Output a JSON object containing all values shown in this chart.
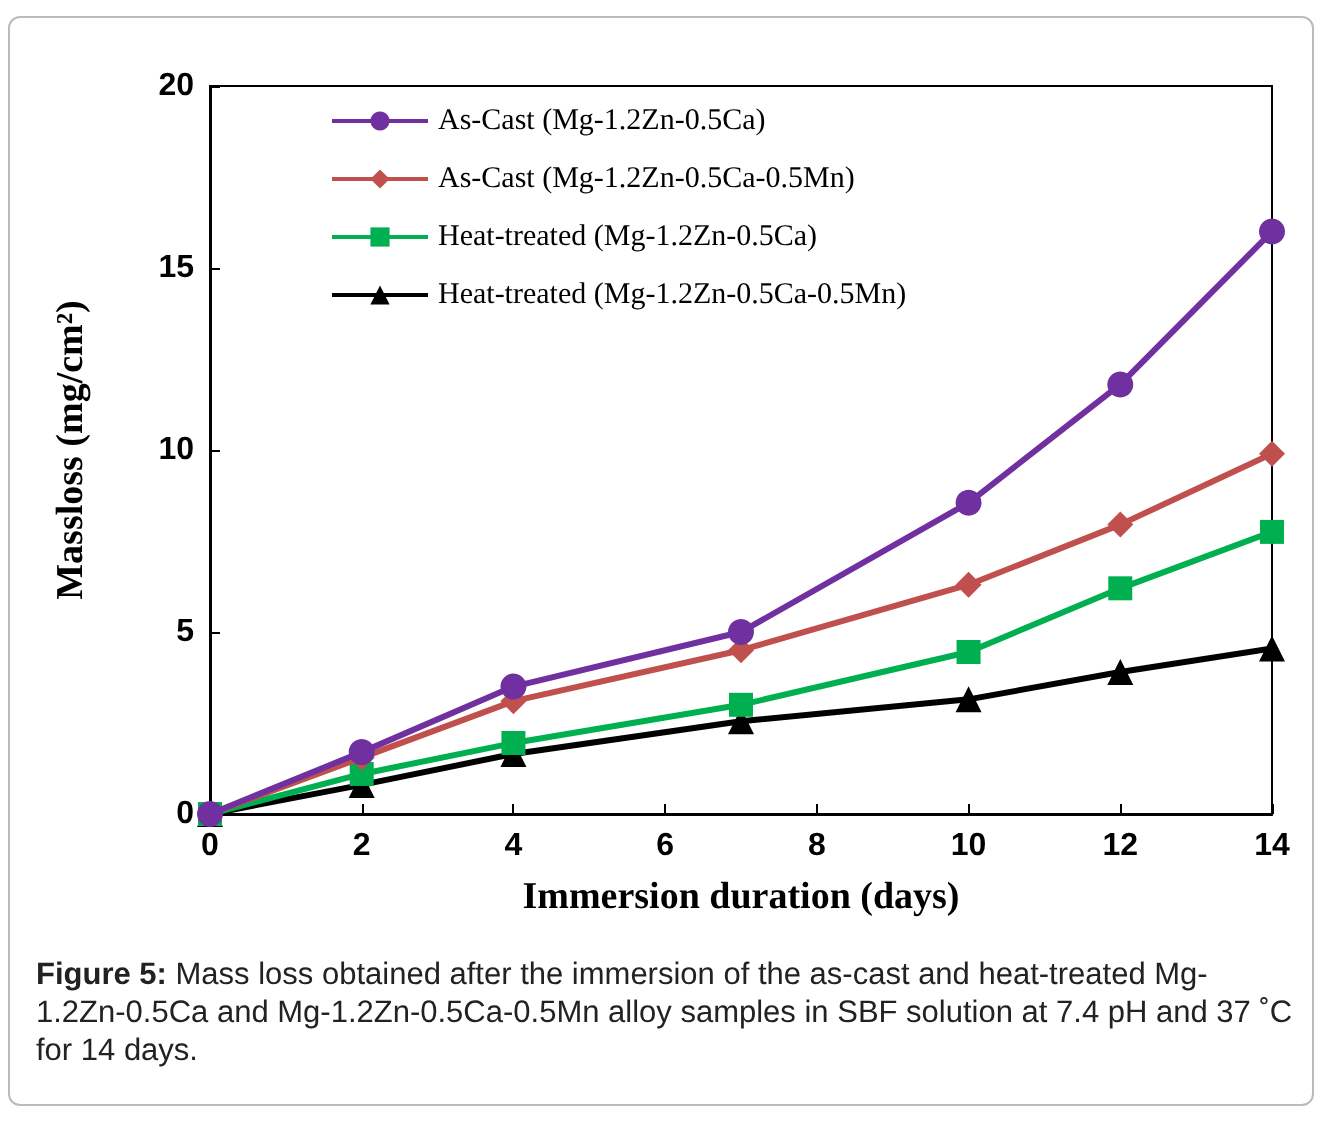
{
  "chart_data": {
    "type": "line",
    "xlabel": "Immersion duration (days)",
    "ylabel": "Massloss (mg/cm²)",
    "x": [
      0,
      2,
      4,
      7,
      10,
      12,
      14
    ],
    "series": [
      {
        "name": "As-Cast (Mg-1.2Zn-0.5Ca)",
        "color": "#7030a0",
        "marker": "circle",
        "values": [
          0,
          1.7,
          3.5,
          5.0,
          8.55,
          11.8,
          16.0
        ]
      },
      {
        "name": "As-Cast (Mg-1.2Zn-0.5Ca-0.5Mn)",
        "color": "#c0504d",
        "marker": "diamond",
        "values": [
          0,
          1.55,
          3.1,
          4.5,
          6.3,
          7.95,
          9.9
        ]
      },
      {
        "name": "Heat-treated (Mg-1.2Zn-0.5Ca)",
        "color": "#00b050",
        "marker": "square",
        "values": [
          0,
          1.1,
          1.95,
          3.0,
          4.45,
          6.2,
          7.75
        ]
      },
      {
        "name": "Heat-treated (Mg-1.2Zn-0.5Ca-0.5Mn)",
        "color": "#000000",
        "marker": "triangle",
        "values": [
          0,
          0.8,
          1.65,
          2.55,
          3.15,
          3.9,
          4.55
        ]
      }
    ],
    "xlim": [
      0,
      14
    ],
    "xticks": [
      0,
      2,
      4,
      6,
      8,
      10,
      12,
      14
    ],
    "ylim": [
      0,
      20
    ],
    "yticks": [
      0,
      5,
      10,
      15,
      20
    ],
    "grid": false,
    "legend": "top left",
    "line_style": "solid",
    "annotations": [
      "Figure 5: Mass loss obtained after the immersion of the as-cast and heat-treated Mg-1.2Zn-0.5Ca and Mg-1.2Zn-0.5Ca-0.5Mn alloy samples in SBF solution at 7.4 pH and 37 ˚C for 14 days."
    ]
  }
}
